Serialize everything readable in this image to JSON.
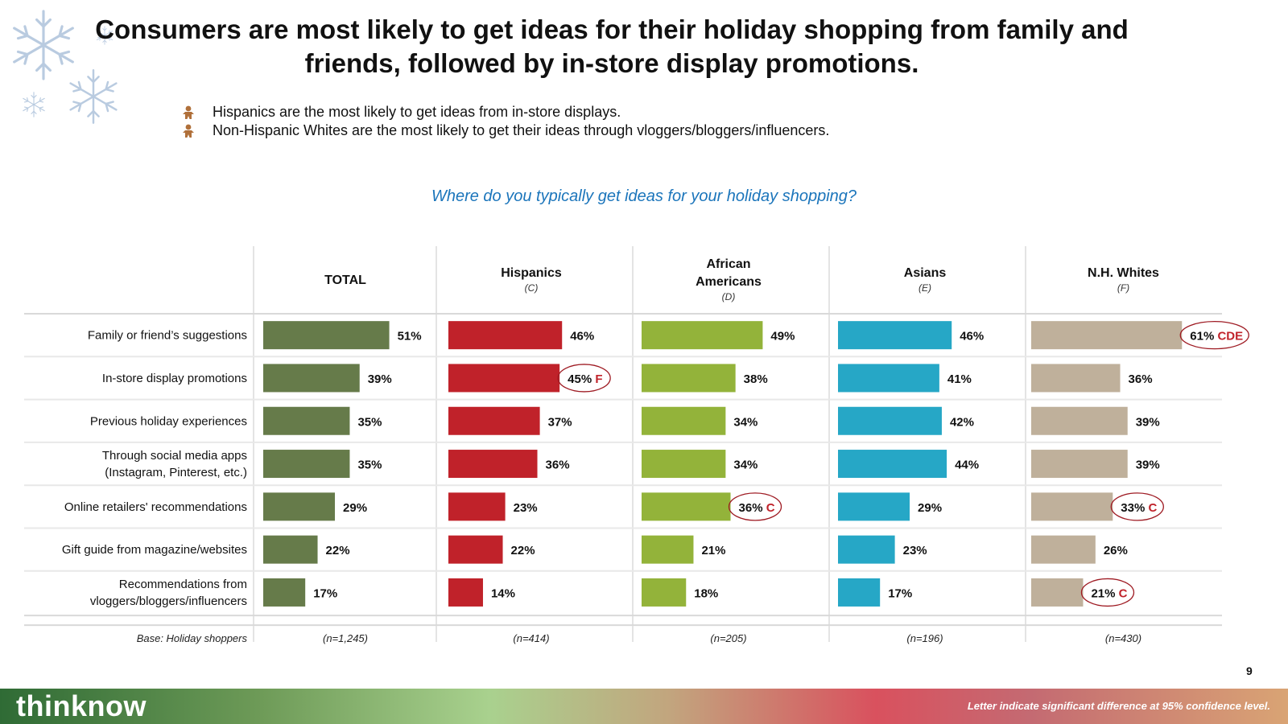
{
  "title": "Consumers are most likely to get ideas for their holiday shopping from family and friends, followed by in-store display promotions.",
  "bullets": [
    "Hispanics are the most likely to get ideas from in-store displays.",
    "Non-Hispanic Whites are the most likely to get their ideas through vloggers/bloggers/influencers."
  ],
  "question": "Where do you typically get ideas for your holiday shopping?",
  "page_number": "9",
  "brand": "thinknow",
  "footnote": "Letter indicate significant difference at 95% confidence level.",
  "colors": {
    "total": "#667b4a",
    "hispanics": "#c0222a",
    "african_americans": "#93b33a",
    "asians": "#26a7c6",
    "nh_whites": "#bfb09b",
    "sig_letter": "#c0222a",
    "circle": "#9e1a22",
    "question": "#1b75bb"
  },
  "chart_data": {
    "type": "bar",
    "orientation": "horizontal",
    "title": "Where do you typically get ideas for your holiday shopping?",
    "base_label": "Base: Holiday shoppers",
    "categories": [
      "Family or friend’s suggestions",
      "In-store display promotions",
      "Previous holiday experiences",
      "Through social media apps (Instagram, Pinterest, etc.)",
      "Online retailers' recommendations",
      "Gift guide from magazine/websites",
      "Recommendations from vloggers/bloggers/influencers"
    ],
    "category_lines": [
      [
        "Family or friend’s suggestions"
      ],
      [
        "In-store display promotions"
      ],
      [
        "Previous holiday experiences"
      ],
      [
        "Through social media apps",
        "(Instagram, Pinterest, etc.)"
      ],
      [
        "Online retailers' recommendations"
      ],
      [
        "Gift guide from magazine/websites"
      ],
      [
        "Recommendations from",
        "vloggers/bloggers/influencers"
      ]
    ],
    "series": [
      {
        "name": "TOTAL",
        "name_lines": [
          "TOTAL"
        ],
        "letter": "",
        "color_key": "total",
        "base": "(n=1,245)",
        "values": [
          51,
          39,
          35,
          35,
          29,
          22,
          17
        ],
        "sig": [
          "",
          "",
          "",
          "",
          "",
          "",
          ""
        ]
      },
      {
        "name": "Hispanics",
        "name_lines": [
          "Hispanics"
        ],
        "letter": "(C)",
        "color_key": "hispanics",
        "base": "(n=414)",
        "values": [
          46,
          45,
          37,
          36,
          23,
          22,
          14
        ],
        "sig": [
          "",
          "F",
          "",
          "",
          "",
          "",
          ""
        ]
      },
      {
        "name": "African Americans",
        "name_lines": [
          "African",
          "Americans"
        ],
        "letter": "(D)",
        "color_key": "african_americans",
        "base": "(n=205)",
        "values": [
          49,
          38,
          34,
          34,
          36,
          21,
          18
        ],
        "sig": [
          "",
          "",
          "",
          "",
          "C",
          "",
          ""
        ]
      },
      {
        "name": "Asians",
        "name_lines": [
          "Asians"
        ],
        "letter": "(E)",
        "color_key": "asians",
        "base": "(n=196)",
        "values": [
          46,
          41,
          42,
          44,
          29,
          23,
          17
        ],
        "sig": [
          "",
          "",
          "",
          "",
          "",
          "",
          ""
        ]
      },
      {
        "name": "N.H. Whites",
        "name_lines": [
          "N.H. Whites"
        ],
        "letter": "(F)",
        "color_key": "nh_whites",
        "base": "(n=430)",
        "values": [
          61,
          36,
          39,
          39,
          33,
          26,
          21
        ],
        "sig": [
          "CDE",
          "",
          "",
          "",
          "C",
          "",
          "C"
        ]
      }
    ],
    "unit": "%",
    "xlim": [
      0,
      61
    ]
  }
}
